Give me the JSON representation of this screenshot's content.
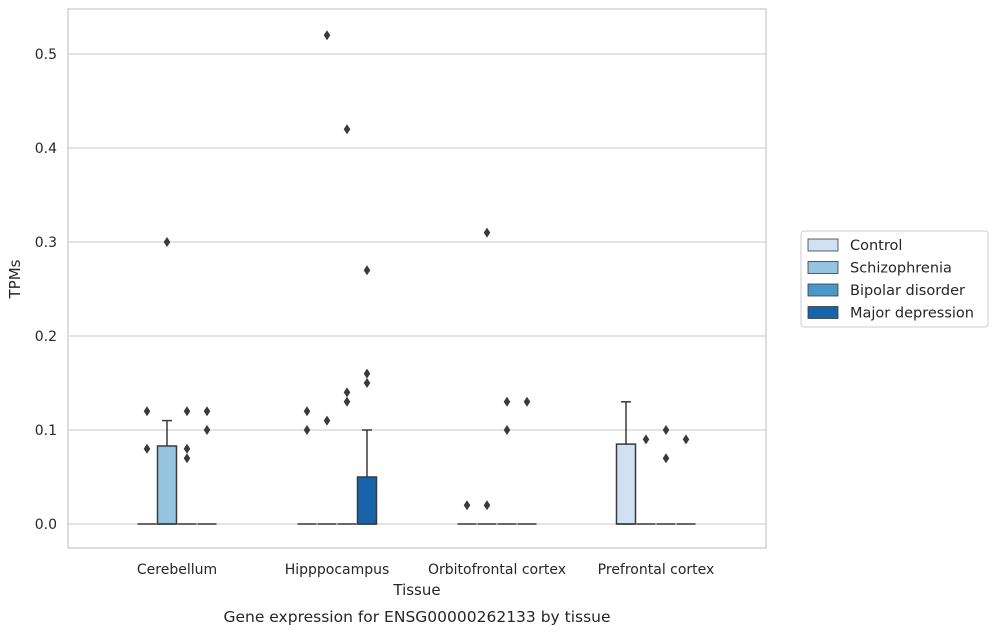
{
  "chart_data": {
    "type": "box",
    "xlabel": "Tissue",
    "ylabel": "TPMs",
    "caption": "Gene expression for ENSG00000262133 by tissue",
    "ylim": [
      -0.025,
      0.545
    ],
    "yticks": [
      0.0,
      0.1,
      0.2,
      0.3,
      0.4,
      0.5
    ],
    "ytick_labels": [
      "0.0",
      "0.1",
      "0.2",
      "0.3",
      "0.4",
      "0.5"
    ],
    "grid": true,
    "legend_position": "right",
    "categories": [
      "Cerebellum",
      "Hipppocampus",
      "Orbitofrontal cortex",
      "Prefrontal cortex"
    ],
    "series": [
      {
        "name": "Control",
        "color": "#d0e1f2",
        "boxes": [
          {
            "category": 0,
            "q1": 0,
            "median": 0,
            "q3": 0,
            "whisker_low": 0,
            "whisker_high": 0,
            "outliers": [
              0.12,
              0.08
            ]
          },
          {
            "category": 1,
            "q1": 0,
            "median": 0,
            "q3": 0,
            "whisker_low": 0,
            "whisker_high": 0,
            "outliers": [
              0.12,
              0.1
            ]
          },
          {
            "category": 2,
            "q1": 0,
            "median": 0,
            "q3": 0,
            "whisker_low": 0,
            "whisker_high": 0,
            "outliers": [
              0.02
            ]
          },
          {
            "category": 3,
            "q1": 0,
            "median": 0,
            "q3": 0.085,
            "whisker_low": 0,
            "whisker_high": 0.13,
            "outliers": []
          }
        ]
      },
      {
        "name": "Schizophrenia",
        "color": "#94c4df",
        "boxes": [
          {
            "category": 0,
            "q1": 0,
            "median": 0,
            "q3": 0.083,
            "whisker_low": 0,
            "whisker_high": 0.11,
            "outliers": [
              0.3
            ]
          },
          {
            "category": 1,
            "q1": 0,
            "median": 0,
            "q3": 0,
            "whisker_low": 0,
            "whisker_high": 0,
            "outliers": [
              0.52,
              0.11
            ]
          },
          {
            "category": 2,
            "q1": 0,
            "median": 0,
            "q3": 0,
            "whisker_low": 0,
            "whisker_high": 0,
            "outliers": [
              0.31,
              0.02
            ]
          },
          {
            "category": 3,
            "q1": 0,
            "median": 0,
            "q3": 0,
            "whisker_low": 0,
            "whisker_high": 0,
            "outliers": [
              0.09
            ]
          }
        ]
      },
      {
        "name": "Bipolar disorder",
        "color": "#4a98c9",
        "boxes": [
          {
            "category": 0,
            "q1": 0,
            "median": 0,
            "q3": 0,
            "whisker_low": 0,
            "whisker_high": 0,
            "outliers": [
              0.12,
              0.08,
              0.07
            ]
          },
          {
            "category": 1,
            "q1": 0,
            "median": 0,
            "q3": 0,
            "whisker_low": 0,
            "whisker_high": 0,
            "outliers": [
              0.42,
              0.14,
              0.13
            ]
          },
          {
            "category": 2,
            "q1": 0,
            "median": 0,
            "q3": 0,
            "whisker_low": 0,
            "whisker_high": 0,
            "outliers": [
              0.13,
              0.1
            ]
          },
          {
            "category": 3,
            "q1": 0,
            "median": 0,
            "q3": 0,
            "whisker_low": 0,
            "whisker_high": 0,
            "outliers": [
              0.1,
              0.07
            ]
          }
        ]
      },
      {
        "name": "Major depression",
        "color": "#1764ab",
        "boxes": [
          {
            "category": 0,
            "q1": 0,
            "median": 0,
            "q3": 0,
            "whisker_low": 0,
            "whisker_high": 0,
            "outliers": [
              0.12,
              0.1
            ]
          },
          {
            "category": 1,
            "q1": 0,
            "median": 0,
            "q3": 0.05,
            "whisker_low": 0,
            "whisker_high": 0.1,
            "outliers": [
              0.27,
              0.16,
              0.15
            ]
          },
          {
            "category": 2,
            "q1": 0,
            "median": 0,
            "q3": 0,
            "whisker_low": 0,
            "whisker_high": 0,
            "outliers": [
              0.13
            ]
          },
          {
            "category": 3,
            "q1": 0,
            "median": 0,
            "q3": 0,
            "whisker_low": 0,
            "whisker_high": 0,
            "outliers": [
              0.09
            ]
          }
        ]
      }
    ]
  }
}
